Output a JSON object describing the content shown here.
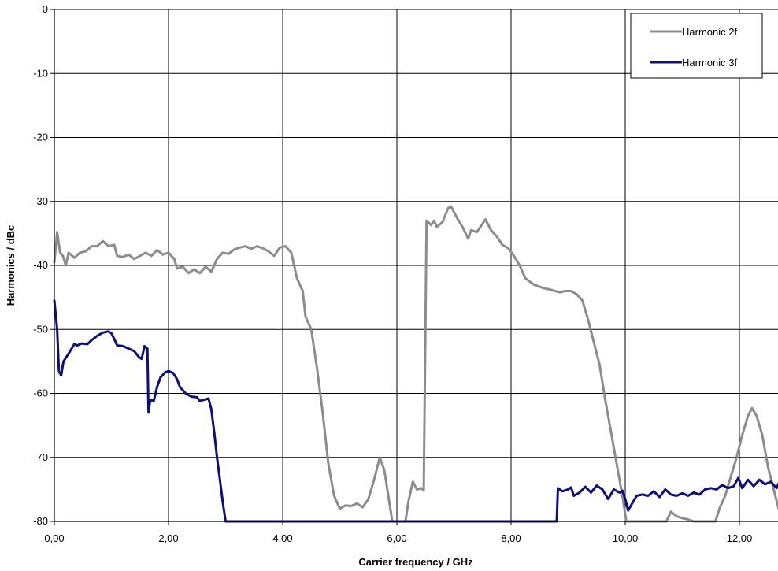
{
  "chart_data": {
    "type": "line",
    "title": "",
    "xlabel": "Carrier frequency / GHz",
    "ylabel": "Harmonics / dBc",
    "xlim": [
      0,
      12.7
    ],
    "ylim": [
      -80,
      0
    ],
    "grid": true,
    "legend_position": "top-right",
    "x_ticks": [
      {
        "value": 0,
        "label": "0,00"
      },
      {
        "value": 2,
        "label": "2,00"
      },
      {
        "value": 4,
        "label": "4,00"
      },
      {
        "value": 6,
        "label": "6,00"
      },
      {
        "value": 8,
        "label": "8,00"
      },
      {
        "value": 10,
        "label": "10,00"
      },
      {
        "value": 12,
        "label": "12,00"
      }
    ],
    "y_ticks": [
      {
        "value": 0,
        "label": "0"
      },
      {
        "value": -10,
        "label": "-10"
      },
      {
        "value": -20,
        "label": "-20"
      },
      {
        "value": -30,
        "label": "-30"
      },
      {
        "value": -40,
        "label": "-40"
      },
      {
        "value": -50,
        "label": "-50"
      },
      {
        "value": -60,
        "label": "-60"
      },
      {
        "value": -70,
        "label": "-70"
      },
      {
        "value": -80,
        "label": "-80"
      }
    ],
    "series": [
      {
        "name": "Harmonic 2f",
        "color": "#8c8c8c",
        "points": [
          [
            0.0,
            -39.5
          ],
          [
            0.05,
            -34.8
          ],
          [
            0.1,
            -38.0
          ],
          [
            0.15,
            -38.5
          ],
          [
            0.2,
            -40.0
          ],
          [
            0.25,
            -38.0
          ],
          [
            0.35,
            -38.8
          ],
          [
            0.45,
            -38.0
          ],
          [
            0.55,
            -37.8
          ],
          [
            0.65,
            -37.0
          ],
          [
            0.75,
            -37.0
          ],
          [
            0.85,
            -36.2
          ],
          [
            0.95,
            -37.0
          ],
          [
            1.05,
            -36.8
          ],
          [
            1.1,
            -38.5
          ],
          [
            1.2,
            -38.7
          ],
          [
            1.3,
            -38.3
          ],
          [
            1.4,
            -39.0
          ],
          [
            1.5,
            -38.5
          ],
          [
            1.6,
            -38.0
          ],
          [
            1.7,
            -38.5
          ],
          [
            1.8,
            -37.6
          ],
          [
            1.9,
            -38.3
          ],
          [
            2.0,
            -38.0
          ],
          [
            2.1,
            -39.0
          ],
          [
            2.15,
            -40.5
          ],
          [
            2.25,
            -40.2
          ],
          [
            2.35,
            -41.2
          ],
          [
            2.45,
            -40.6
          ],
          [
            2.55,
            -41.2
          ],
          [
            2.65,
            -40.2
          ],
          [
            2.75,
            -41.0
          ],
          [
            2.85,
            -39.0
          ],
          [
            2.95,
            -38.0
          ],
          [
            3.05,
            -38.2
          ],
          [
            3.15,
            -37.5
          ],
          [
            3.25,
            -37.2
          ],
          [
            3.35,
            -37.0
          ],
          [
            3.45,
            -37.4
          ],
          [
            3.55,
            -37.0
          ],
          [
            3.65,
            -37.3
          ],
          [
            3.75,
            -37.8
          ],
          [
            3.85,
            -38.5
          ],
          [
            3.95,
            -37.2
          ],
          [
            4.05,
            -37.0
          ],
          [
            4.15,
            -38.0
          ],
          [
            4.25,
            -42.0
          ],
          [
            4.35,
            -44.0
          ],
          [
            4.4,
            -48.0
          ],
          [
            4.5,
            -50.0
          ],
          [
            4.6,
            -56.0
          ],
          [
            4.7,
            -63.0
          ],
          [
            4.8,
            -71.0
          ],
          [
            4.9,
            -76.0
          ],
          [
            5.0,
            -78.0
          ],
          [
            5.1,
            -77.5
          ],
          [
            5.2,
            -77.6
          ],
          [
            5.3,
            -77.2
          ],
          [
            5.4,
            -77.8
          ],
          [
            5.5,
            -76.5
          ],
          [
            5.6,
            -73.5
          ],
          [
            5.7,
            -70.0
          ],
          [
            5.78,
            -72.0
          ],
          [
            5.85,
            -76.0
          ],
          [
            5.92,
            -80.0
          ],
          [
            6.15,
            -80.0
          ],
          [
            6.2,
            -77.0
          ],
          [
            6.28,
            -73.8
          ],
          [
            6.35,
            -75.0
          ],
          [
            6.42,
            -74.8
          ],
          [
            6.47,
            -75.2
          ],
          [
            6.52,
            -33.0
          ],
          [
            6.6,
            -33.7
          ],
          [
            6.65,
            -33.0
          ],
          [
            6.7,
            -34.0
          ],
          [
            6.8,
            -33.2
          ],
          [
            6.9,
            -31.0
          ],
          [
            6.95,
            -30.8
          ],
          [
            7.05,
            -32.5
          ],
          [
            7.15,
            -34.0
          ],
          [
            7.25,
            -35.8
          ],
          [
            7.3,
            -34.5
          ],
          [
            7.4,
            -34.8
          ],
          [
            7.5,
            -33.5
          ],
          [
            7.55,
            -32.8
          ],
          [
            7.65,
            -34.5
          ],
          [
            7.75,
            -35.5
          ],
          [
            7.85,
            -36.8
          ],
          [
            7.95,
            -37.3
          ],
          [
            8.05,
            -38.5
          ],
          [
            8.15,
            -40.0
          ],
          [
            8.25,
            -42.0
          ],
          [
            8.4,
            -43.0
          ],
          [
            8.55,
            -43.5
          ],
          [
            8.7,
            -43.8
          ],
          [
            8.85,
            -44.2
          ],
          [
            8.95,
            -44.0
          ],
          [
            9.05,
            -44.0
          ],
          [
            9.15,
            -44.5
          ],
          [
            9.25,
            -45.5
          ],
          [
            9.35,
            -48.5
          ],
          [
            9.45,
            -52.0
          ],
          [
            9.55,
            -55.5
          ],
          [
            9.65,
            -61.0
          ],
          [
            9.75,
            -66.0
          ],
          [
            9.85,
            -71.0
          ],
          [
            9.95,
            -76.0
          ],
          [
            10.02,
            -80.0
          ],
          [
            10.72,
            -80.0
          ],
          [
            10.8,
            -78.5
          ],
          [
            10.9,
            -79.2
          ],
          [
            11.0,
            -79.5
          ],
          [
            11.1,
            -79.7
          ],
          [
            11.2,
            -80.0
          ],
          [
            11.58,
            -80.0
          ],
          [
            11.65,
            -78.0
          ],
          [
            11.75,
            -76.0
          ],
          [
            11.85,
            -73.0
          ],
          [
            11.95,
            -70.0
          ],
          [
            12.05,
            -66.5
          ],
          [
            12.15,
            -63.5
          ],
          [
            12.22,
            -62.3
          ],
          [
            12.3,
            -63.5
          ],
          [
            12.4,
            -66.5
          ],
          [
            12.5,
            -71.5
          ],
          [
            12.6,
            -75.0
          ],
          [
            12.7,
            -78.5
          ]
        ]
      },
      {
        "name": "Harmonic 3f",
        "color": "#0f0f78",
        "points": [
          [
            0.0,
            -45.5
          ],
          [
            0.05,
            -50.0
          ],
          [
            0.08,
            -56.5
          ],
          [
            0.12,
            -57.2
          ],
          [
            0.16,
            -55.0
          ],
          [
            0.25,
            -53.8
          ],
          [
            0.35,
            -52.3
          ],
          [
            0.4,
            -52.5
          ],
          [
            0.48,
            -52.2
          ],
          [
            0.58,
            -52.3
          ],
          [
            0.65,
            -51.7
          ],
          [
            0.75,
            -51.0
          ],
          [
            0.85,
            -50.5
          ],
          [
            0.95,
            -50.3
          ],
          [
            1.0,
            -50.6
          ],
          [
            1.05,
            -51.5
          ],
          [
            1.1,
            -52.5
          ],
          [
            1.2,
            -52.6
          ],
          [
            1.3,
            -53.0
          ],
          [
            1.4,
            -53.4
          ],
          [
            1.48,
            -54.3
          ],
          [
            1.53,
            -54.6
          ],
          [
            1.58,
            -52.6
          ],
          [
            1.63,
            -53.0
          ],
          [
            1.65,
            -63.0
          ],
          [
            1.68,
            -61.0
          ],
          [
            1.74,
            -61.2
          ],
          [
            1.8,
            -59.0
          ],
          [
            1.86,
            -57.5
          ],
          [
            1.94,
            -56.7
          ],
          [
            2.0,
            -56.5
          ],
          [
            2.08,
            -56.8
          ],
          [
            2.15,
            -57.8
          ],
          [
            2.2,
            -59.0
          ],
          [
            2.3,
            -60.0
          ],
          [
            2.4,
            -60.5
          ],
          [
            2.5,
            -60.6
          ],
          [
            2.55,
            -61.2
          ],
          [
            2.62,
            -61.0
          ],
          [
            2.7,
            -60.8
          ],
          [
            2.75,
            -62.5
          ],
          [
            2.8,
            -66.0
          ],
          [
            2.85,
            -70.0
          ],
          [
            2.9,
            -73.5
          ],
          [
            2.95,
            -77.0
          ],
          [
            3.0,
            -80.0
          ],
          [
            8.8,
            -80.0
          ],
          [
            8.82,
            -74.8
          ],
          [
            8.9,
            -75.3
          ],
          [
            9.0,
            -75.0
          ],
          [
            9.05,
            -74.7
          ],
          [
            9.1,
            -76.0
          ],
          [
            9.2,
            -75.5
          ],
          [
            9.3,
            -74.6
          ],
          [
            9.4,
            -75.5
          ],
          [
            9.5,
            -74.4
          ],
          [
            9.6,
            -75.0
          ],
          [
            9.7,
            -76.5
          ],
          [
            9.8,
            -75.0
          ],
          [
            9.9,
            -75.5
          ],
          [
            9.95,
            -75.2
          ],
          [
            10.0,
            -76.5
          ],
          [
            10.05,
            -78.3
          ],
          [
            10.1,
            -77.5
          ],
          [
            10.2,
            -76.0
          ],
          [
            10.3,
            -75.8
          ],
          [
            10.4,
            -76.0
          ],
          [
            10.5,
            -75.3
          ],
          [
            10.6,
            -76.2
          ],
          [
            10.7,
            -75.0
          ],
          [
            10.8,
            -75.8
          ],
          [
            10.9,
            -76.0
          ],
          [
            11.0,
            -75.6
          ],
          [
            11.1,
            -76.0
          ],
          [
            11.2,
            -75.5
          ],
          [
            11.3,
            -75.8
          ],
          [
            11.4,
            -75.0
          ],
          [
            11.5,
            -74.8
          ],
          [
            11.6,
            -75.0
          ],
          [
            11.7,
            -74.3
          ],
          [
            11.8,
            -74.8
          ],
          [
            11.9,
            -74.5
          ],
          [
            11.98,
            -73.2
          ],
          [
            12.05,
            -74.8
          ],
          [
            12.15,
            -73.5
          ],
          [
            12.25,
            -74.5
          ],
          [
            12.35,
            -73.5
          ],
          [
            12.45,
            -74.2
          ],
          [
            12.55,
            -73.8
          ],
          [
            12.65,
            -74.8
          ],
          [
            12.7,
            -73.8
          ]
        ]
      }
    ]
  }
}
